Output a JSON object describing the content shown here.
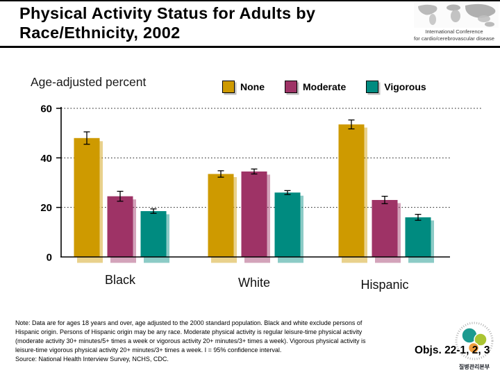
{
  "slide": {
    "title": "Physical Activity Status for Adults by\nRace/Ethnicity, 2002"
  },
  "conference_logo": {
    "line1": "International Conference",
    "line2": "for cardio/cerebrovascular disease"
  },
  "chart_data": {
    "type": "bar",
    "title": "Physical Activity Status for Adults by Race/Ethnicity, 2002",
    "ylabel": "Age-adjusted percent",
    "categories": [
      "Black",
      "White",
      "Hispanic"
    ],
    "series": [
      {
        "name": "None",
        "color": "#CE9A00",
        "values": [
          48,
          33.5,
          53.5
        ],
        "ci95": [
          2.5,
          1.3,
          1.8
        ]
      },
      {
        "name": "Moderate",
        "color": "#9E3366",
        "values": [
          24.5,
          34.5,
          23
        ],
        "ci95": [
          2.0,
          1.0,
          1.5
        ]
      },
      {
        "name": "Vigorous",
        "color": "#008B80",
        "values": [
          18.5,
          26,
          16
        ],
        "ci95": [
          0.9,
          0.8,
          1.2
        ]
      }
    ],
    "ylim": [
      0,
      60
    ],
    "yticks": [
      0,
      20,
      40,
      60
    ],
    "grid": "horizontal dotted lines at 20, 40, 60",
    "legend_position": "top",
    "error_bars": "95% confidence interval"
  },
  "note": {
    "text": "Note:  Data are for ages 18 years and over, age adjusted to the 2000 standard population. Black and white exclude persons of\nHispanic origin. Persons of Hispanic origin may be any race. Moderate physical activity is regular leisure-time physical activity\n(moderate activity 30+ minutes/5+ times a week or vigorous activity 20+ minutes/3+ times a week). Vigorous physical activity is\nleisure-time vigorous physical activity 20+ minutes/3+ times a week. I =  95% confidence interval.\nSource: National Health Interview Survey, NCHS, CDC."
  },
  "objectives": {
    "label": "Objs. 22-1, 2, 3"
  },
  "kcdc_logo": {
    "caption": "질병관리본부"
  }
}
